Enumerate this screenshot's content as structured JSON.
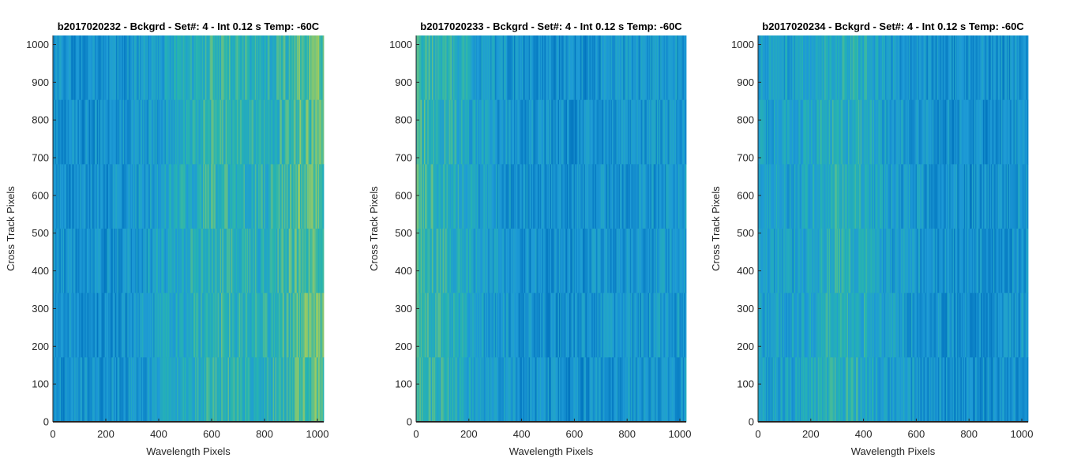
{
  "chart_data": [
    {
      "type": "heatmap",
      "title": "b2017020232 - Bckgrd - Set#: 4 - Int 0.12 s Temp: -60C",
      "xlabel": "Wavelength Pixels",
      "ylabel": "Cross Track Pixels",
      "xlim": [
        0,
        1024
      ],
      "ylim": [
        0,
        1024
      ],
      "xticks": [
        0,
        200,
        400,
        600,
        800,
        1000
      ],
      "yticks": [
        0,
        100,
        200,
        300,
        400,
        500,
        600,
        700,
        800,
        900,
        1000
      ],
      "colormap": [
        "#0072BD",
        "#1E9BD6",
        "#27B4B0",
        "#9CCB62",
        "#D7C63A"
      ],
      "column_intensity_profile": {
        "x": [
          0,
          200,
          400,
          600,
          800,
          900,
          1000,
          1024
        ],
        "level": [
          0.2,
          0.18,
          0.3,
          0.5,
          0.42,
          0.55,
          0.62,
          0.55
        ]
      }
    },
    {
      "type": "heatmap",
      "title": "b2017020233 - Bckgrd - Set#: 4 - Int 0.12 s Temp: -60C",
      "xlabel": "Wavelength Pixels",
      "ylabel": "Cross Track Pixels",
      "xlim": [
        0,
        1024
      ],
      "ylim": [
        0,
        1024
      ],
      "xticks": [
        0,
        200,
        400,
        600,
        800,
        1000
      ],
      "yticks": [
        0,
        100,
        200,
        300,
        400,
        500,
        600,
        700,
        800,
        900,
        1000
      ],
      "colormap": [
        "#0072BD",
        "#1E9BD6",
        "#27B4B0",
        "#9CCB62",
        "#D7C63A"
      ],
      "column_intensity_profile": {
        "x": [
          0,
          50,
          150,
          250,
          400,
          600,
          800,
          1024
        ],
        "level": [
          0.55,
          0.5,
          0.42,
          0.3,
          0.2,
          0.18,
          0.22,
          0.25
        ]
      }
    },
    {
      "type": "heatmap",
      "title": "b2017020234 - Bckgrd - Set#: 4 - Int 0.12 s Temp: -60C",
      "xlabel": "Wavelength Pixels",
      "ylabel": "Cross Track Pixels",
      "xlim": [
        0,
        1024
      ],
      "ylim": [
        0,
        1024
      ],
      "xticks": [
        0,
        200,
        400,
        600,
        800,
        1000
      ],
      "yticks": [
        0,
        100,
        200,
        300,
        400,
        500,
        600,
        700,
        800,
        900,
        1000
      ],
      "colormap": [
        "#0072BD",
        "#1E9BD6",
        "#27B4B0",
        "#9CCB62",
        "#D7C63A"
      ],
      "column_intensity_profile": {
        "x": [
          0,
          150,
          300,
          400,
          500,
          700,
          900,
          1024
        ],
        "level": [
          0.3,
          0.32,
          0.45,
          0.4,
          0.28,
          0.2,
          0.18,
          0.25
        ]
      }
    }
  ]
}
